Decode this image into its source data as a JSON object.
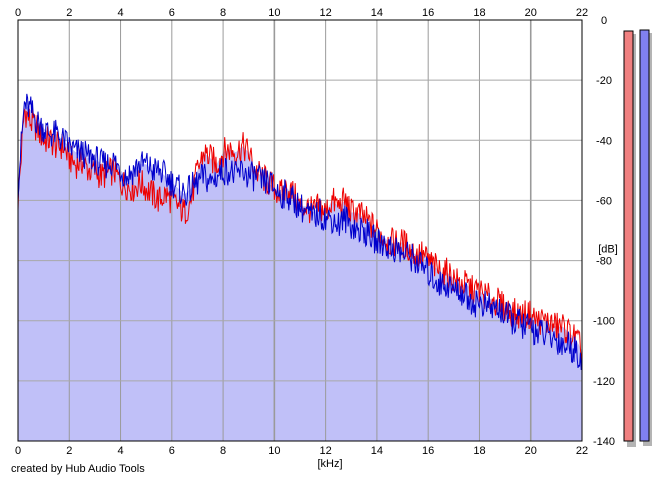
{
  "chart_data": {
    "type": "area",
    "xlabel": "[kHz]",
    "ylabel": "[dB]",
    "xlim": [
      0,
      22
    ],
    "ylim": [
      -140,
      0
    ],
    "x_ticks": [
      0,
      2,
      4,
      6,
      8,
      10,
      12,
      14,
      16,
      18,
      20,
      22
    ],
    "y_ticks": [
      0,
      -20,
      -40,
      -60,
      -80,
      -100,
      -120,
      -140
    ],
    "grid": true,
    "series": [
      {
        "channel": "left",
        "color": "#ee0000",
        "x": [
          0,
          0.25,
          0.5,
          0.75,
          1,
          1.25,
          1.5,
          1.75,
          2,
          2.25,
          2.5,
          2.75,
          3,
          3.25,
          3.5,
          3.75,
          4,
          4.25,
          4.5,
          4.75,
          5,
          5.25,
          5.5,
          5.75,
          6,
          6.25,
          6.5,
          6.75,
          7,
          7.25,
          7.5,
          7.75,
          8,
          8.25,
          8.5,
          8.75,
          9,
          9.25,
          9.5,
          9.75,
          10,
          10.25,
          10.5,
          10.75,
          11,
          11.25,
          11.5,
          11.75,
          12,
          12.25,
          12.5,
          12.75,
          13,
          13.25,
          13.5,
          13.75,
          14,
          14.25,
          14.5,
          14.75,
          15,
          15.25,
          15.5,
          15.75,
          16,
          16.25,
          16.5,
          16.75,
          17,
          17.25,
          17.5,
          17.75,
          18,
          18.25,
          18.5,
          18.75,
          19,
          19.25,
          19.5,
          19.75,
          20,
          20.25,
          20.5,
          20.75,
          21,
          21.25,
          21.5,
          21.75,
          22
        ],
        "values": [
          -60,
          -30,
          -34,
          -36,
          -40,
          -40,
          -42,
          -42,
          -46,
          -48,
          -47,
          -50,
          -50,
          -52,
          -51,
          -50,
          -54,
          -55,
          -56,
          -54,
          -56,
          -58,
          -60,
          -58,
          -60,
          -62,
          -64,
          -60,
          -50,
          -44,
          -46,
          -48,
          -44,
          -43,
          -44,
          -42,
          -44,
          -50,
          -52,
          -54,
          -56,
          -58,
          -56,
          -58,
          -62,
          -62,
          -64,
          -62,
          -64,
          -60,
          -62,
          -60,
          -64,
          -64,
          -66,
          -68,
          -70,
          -72,
          -74,
          -74,
          -74,
          -76,
          -78,
          -78,
          -80,
          -82,
          -84,
          -84,
          -86,
          -88,
          -88,
          -90,
          -90,
          -92,
          -93,
          -94,
          -96,
          -97,
          -98,
          -98,
          -98,
          -100,
          -100,
          -101,
          -102,
          -102,
          -104,
          -106,
          -110
        ]
      },
      {
        "channel": "right",
        "color": "#0000cc",
        "x": [
          0,
          0.25,
          0.5,
          0.75,
          1,
          1.25,
          1.5,
          1.75,
          2,
          2.25,
          2.5,
          2.75,
          3,
          3.25,
          3.5,
          3.75,
          4,
          4.25,
          4.5,
          4.75,
          5,
          5.25,
          5.5,
          5.75,
          6,
          6.25,
          6.5,
          6.75,
          7,
          7.25,
          7.5,
          7.75,
          8,
          8.25,
          8.5,
          8.75,
          9,
          9.25,
          9.5,
          9.75,
          10,
          10.25,
          10.5,
          10.75,
          11,
          11.25,
          11.5,
          11.75,
          12,
          12.25,
          12.5,
          12.75,
          13,
          13.25,
          13.5,
          13.75,
          14,
          14.25,
          14.5,
          14.75,
          15,
          15.25,
          15.5,
          15.75,
          16,
          16.25,
          16.5,
          16.75,
          17,
          17.25,
          17.5,
          17.75,
          18,
          18.25,
          18.5,
          18.75,
          19,
          19.25,
          19.5,
          19.75,
          20,
          20.25,
          20.5,
          20.75,
          21,
          21.25,
          21.5,
          21.75,
          22
        ],
        "values": [
          -55,
          -28,
          -30,
          -34,
          -36,
          -38,
          -38,
          -40,
          -42,
          -44,
          -44,
          -46,
          -46,
          -48,
          -48,
          -47,
          -50,
          -52,
          -50,
          -48,
          -48,
          -50,
          -50,
          -52,
          -54,
          -56,
          -58,
          -56,
          -54,
          -52,
          -54,
          -52,
          -50,
          -50,
          -52,
          -50,
          -52,
          -52,
          -54,
          -54,
          -56,
          -58,
          -58,
          -60,
          -62,
          -64,
          -66,
          -64,
          -66,
          -66,
          -68,
          -66,
          -68,
          -70,
          -70,
          -72,
          -74,
          -74,
          -76,
          -76,
          -78,
          -78,
          -80,
          -82,
          -84,
          -86,
          -88,
          -88,
          -90,
          -90,
          -92,
          -94,
          -94,
          -95,
          -96,
          -96,
          -98,
          -100,
          -100,
          -102,
          -102,
          -104,
          -104,
          -106,
          -106,
          -108,
          -108,
          -110,
          -112
        ]
      }
    ],
    "fill_color": "#c0c0f8",
    "level_meters": [
      {
        "channel": "left",
        "color": "#f08080",
        "level_db": -4
      },
      {
        "channel": "right",
        "color": "#8080f0",
        "level_db": -3
      }
    ]
  },
  "footer": {
    "credit": "created by Hub Audio Tools"
  }
}
